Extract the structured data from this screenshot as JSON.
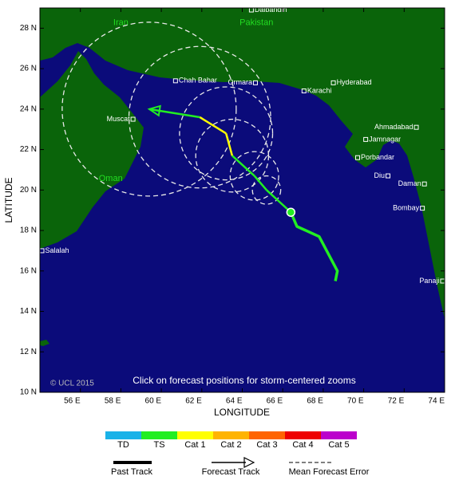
{
  "map": {
    "xlim": [
      54,
      74
    ],
    "ylim": [
      10,
      29
    ],
    "xticks": [
      {
        "value": 56,
        "label": "56 E"
      },
      {
        "value": 58,
        "label": "58 E"
      },
      {
        "value": 60,
        "label": "60 E"
      },
      {
        "value": 62,
        "label": "62 E"
      },
      {
        "value": 64,
        "label": "64 E"
      },
      {
        "value": 66,
        "label": "66 E"
      },
      {
        "value": 68,
        "label": "68 E"
      },
      {
        "value": 70,
        "label": "70 E"
      },
      {
        "value": 72,
        "label": "72 E"
      },
      {
        "value": 74,
        "label": "74 E"
      }
    ],
    "yticks": [
      {
        "value": 10,
        "label": "10 N"
      },
      {
        "value": 12,
        "label": "12 N"
      },
      {
        "value": 14,
        "label": "14 N"
      },
      {
        "value": 16,
        "label": "16 N"
      },
      {
        "value": 18,
        "label": "18 N"
      },
      {
        "value": 20,
        "label": "20 N"
      },
      {
        "value": 22,
        "label": "22 N"
      },
      {
        "value": 24,
        "label": "24 N"
      },
      {
        "value": 26,
        "label": "26 N"
      },
      {
        "value": 28,
        "label": "28 N"
      }
    ],
    "xlabel": "LONGITUDE",
    "ylabel": "LATITUDE",
    "countries": [
      {
        "name": "Iran",
        "lon": 58.0,
        "lat": 28.9
      },
      {
        "name": "Pakistan",
        "lon": 64.7,
        "lat": 28.9
      },
      {
        "name": "Oman",
        "lon": 57.5,
        "lat": 21.2
      }
    ],
    "cities": [
      {
        "name": "Dalbandin",
        "lon": 64.45,
        "lat": 28.9,
        "label_side": "right"
      },
      {
        "name": "Chah Bahar",
        "lon": 60.7,
        "lat": 25.4,
        "label_side": "right"
      },
      {
        "name": "Ormara",
        "lon": 64.65,
        "lat": 25.3,
        "label_side": "left"
      },
      {
        "name": "Karachi",
        "lon": 67.05,
        "lat": 24.9,
        "label_side": "right"
      },
      {
        "name": "Hyderabad",
        "lon": 68.5,
        "lat": 25.3,
        "label_side": "right"
      },
      {
        "name": "Muscat",
        "lon": 58.6,
        "lat": 23.5,
        "label_side": "left"
      },
      {
        "name": "Ahmadabad",
        "lon": 72.6,
        "lat": 23.1,
        "label_side": "left"
      },
      {
        "name": "Jamnagar",
        "lon": 70.1,
        "lat": 22.5,
        "label_side": "right"
      },
      {
        "name": "Porbandar",
        "lon": 69.7,
        "lat": 21.6,
        "label_side": "right"
      },
      {
        "name": "Diu",
        "lon": 71.2,
        "lat": 20.7,
        "label_side": "left"
      },
      {
        "name": "Daman",
        "lon": 73.0,
        "lat": 20.3,
        "label_side": "left"
      },
      {
        "name": "Bombay",
        "lon": 72.9,
        "lat": 19.1,
        "label_side": "left"
      },
      {
        "name": "Salalah",
        "lon": 54.1,
        "lat": 17.0,
        "label_side": "right"
      },
      {
        "name": "Panaji",
        "lon": 73.9,
        "lat": 15.5,
        "label_side": "left"
      }
    ],
    "past_track": {
      "lon": [
        68.6,
        68.7,
        67.8,
        66.7,
        66.4
      ],
      "lat": [
        15.5,
        16.0,
        17.7,
        18.2,
        18.9
      ]
    },
    "forecast": {
      "lon": [
        66.4,
        65.2,
        64.6,
        63.5,
        63.2,
        61.9,
        59.4
      ],
      "lat": [
        18.9,
        20.0,
        20.7,
        21.7,
        22.8,
        23.6,
        24.0
      ],
      "category": [
        null,
        "TS",
        "TS",
        "TS",
        "Cat 1",
        "Cat 1",
        "TS"
      ],
      "error_radius": [
        null,
        0.7,
        1.2,
        1.8,
        2.3,
        3.5,
        4.3
      ]
    },
    "credit": "© UCL 2015",
    "note": "Click on forecast positions for storm-centered zooms",
    "legend": {
      "categories": [
        {
          "name": "TD",
          "color": "#1ab2e8"
        },
        {
          "name": "TS",
          "color": "#22ee22"
        },
        {
          "name": "Cat 1",
          "color": "#ffff00"
        },
        {
          "name": "Cat 2",
          "color": "#ffb400"
        },
        {
          "name": "Cat 3",
          "color": "#ff6400"
        },
        {
          "name": "Cat 4",
          "color": "#ee0000"
        },
        {
          "name": "Cat 5",
          "color": "#bb00cc"
        }
      ],
      "past_track": "Past Track",
      "forecast_track": "Forecast Track",
      "mean_error": "Mean Forecast Error"
    }
  }
}
